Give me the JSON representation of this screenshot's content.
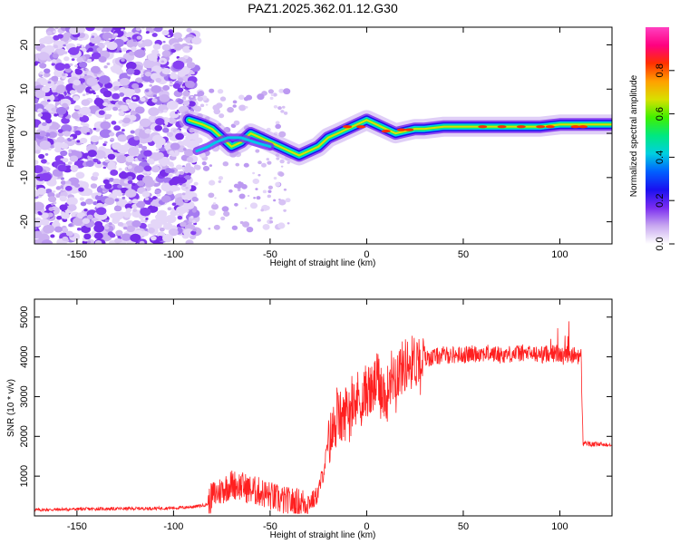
{
  "title": "PAZ1.2025.362.01.12.G30",
  "chart_data": [
    {
      "type": "heatmap",
      "xlabel": "Height of straight line (km)",
      "ylabel": "Frequency (Hz)",
      "xlim": [
        -172,
        127
      ],
      "ylim": [
        -25,
        24
      ],
      "xticks": [
        -150,
        -100,
        -50,
        0,
        50,
        100
      ],
      "yticks": [
        -20,
        -10,
        0,
        10,
        20
      ],
      "ridge": {
        "x": [
          -92,
          -85,
          -80,
          -75,
          -70,
          -65,
          -60,
          -55,
          -50,
          -45,
          -40,
          -35,
          -30,
          -25,
          -20,
          -15,
          -10,
          -5,
          0,
          5,
          10,
          15,
          20,
          25,
          30,
          40,
          50,
          60,
          70,
          80,
          90,
          100,
          110,
          120,
          127
        ],
        "freq": [
          3,
          2,
          1,
          -1,
          -3,
          -2,
          0,
          -1,
          -2,
          -3,
          -4,
          -5,
          -4,
          -3,
          -1,
          0,
          1,
          2,
          3,
          2,
          1,
          0,
          0.5,
          1,
          1,
          1.5,
          1.5,
          1.5,
          1.5,
          1.5,
          1.5,
          2,
          2,
          2,
          2
        ]
      },
      "colorbar": {
        "label": "Normalized spectral amplitude",
        "ticks": [
          0.0,
          0.2,
          0.4,
          0.6,
          0.8
        ],
        "range": [
          0,
          1
        ],
        "colors": [
          "#ffffff",
          "#c8a8f0",
          "#7a2cf0",
          "#1a10f0",
          "#0060ff",
          "#00d0e0",
          "#00e880",
          "#40f000",
          "#d8e000",
          "#ffa000",
          "#ff3000",
          "#ff0080",
          "#ff40c0"
        ]
      }
    },
    {
      "type": "line",
      "xlabel": "Height of straight line (km)",
      "ylabel": "SNR (10 * v/v)",
      "xlim": [
        -172,
        127
      ],
      "ylim": [
        0,
        5450
      ],
      "xticks": [
        -150,
        -100,
        -50,
        0,
        50,
        100
      ],
      "yticks": [
        1000,
        2000,
        3000,
        4000,
        5000
      ],
      "color": "#ff2020",
      "x": [
        -172,
        -160,
        -150,
        -140,
        -130,
        -120,
        -110,
        -100,
        -95,
        -90,
        -85,
        -82,
        -80,
        -75,
        -70,
        -65,
        -60,
        -55,
        -50,
        -45,
        -40,
        -35,
        -30,
        -27,
        -25,
        -22,
        -20,
        -17,
        -15,
        -12,
        -10,
        -7,
        -5,
        -2,
        0,
        3,
        5,
        8,
        10,
        12,
        15,
        18,
        20,
        25,
        30,
        35,
        40,
        50,
        60,
        70,
        80,
        90,
        95,
        100,
        103,
        105,
        108,
        111,
        112,
        113,
        115,
        120,
        127
      ],
      "y": [
        150,
        160,
        170,
        175,
        180,
        185,
        190,
        200,
        210,
        230,
        260,
        300,
        500,
        650,
        800,
        750,
        650,
        600,
        500,
        400,
        350,
        330,
        350,
        420,
        600,
        1200,
        1800,
        2200,
        2500,
        2400,
        2800,
        2600,
        3000,
        2900,
        3200,
        3100,
        3400,
        3300,
        2800,
        3500,
        3600,
        3700,
        3800,
        3900,
        3950,
        4000,
        4050,
        4050,
        4100,
        4050,
        4100,
        4050,
        4100,
        4050,
        4000,
        4000,
        4050,
        4000,
        1800,
        1850,
        1800,
        1800,
        1800
      ]
    }
  ]
}
